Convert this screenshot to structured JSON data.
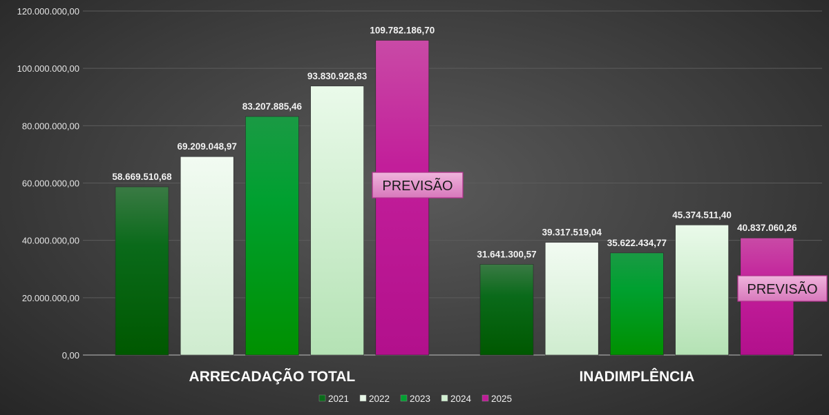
{
  "chart_data": {
    "type": "bar",
    "title": "",
    "xlabel": "",
    "ylabel": "",
    "ylim": [
      0,
      120000000
    ],
    "y_ticks": [
      "0,00",
      "20.000.000,00",
      "40.000.000,00",
      "60.000.000,00",
      "80.000.000,00",
      "100.000.000,00",
      "120.000.000,00"
    ],
    "grid": true,
    "legend_position": "bottom",
    "categories": [
      "ARRECADAÇÃO TOTAL",
      "INADIMPLÊNCIA"
    ],
    "series": [
      {
        "name": "2021",
        "color": "#0b6b1a",
        "values": [
          58669510.68,
          31641300.57
        ],
        "labels": [
          "58.669.510,68",
          "31.641.300,57"
        ]
      },
      {
        "name": "2022",
        "color": "#e8f7e8",
        "values": [
          69209048.97,
          39317519.04
        ],
        "labels": [
          "69.209.048,97",
          "39.317.519,04"
        ]
      },
      {
        "name": "2023",
        "color": "#00a030",
        "values": [
          83207885.46,
          35622434.77
        ],
        "labels": [
          "83.207.885,46",
          "35.622.434,77"
        ]
      },
      {
        "name": "2024",
        "color": "#d2f0d2",
        "values": [
          93830928.83,
          45374511.4
        ],
        "labels": [
          "93.830.928,83",
          "45.374.511,40"
        ]
      },
      {
        "name": "2025",
        "color": "#c01c98",
        "values": [
          109782186.7,
          40837060.26
        ],
        "labels": [
          "109.782.186,70",
          "40.837.060,26"
        ]
      }
    ],
    "annotations": [
      "PREVISÃO",
      "PREVISÃO"
    ]
  }
}
